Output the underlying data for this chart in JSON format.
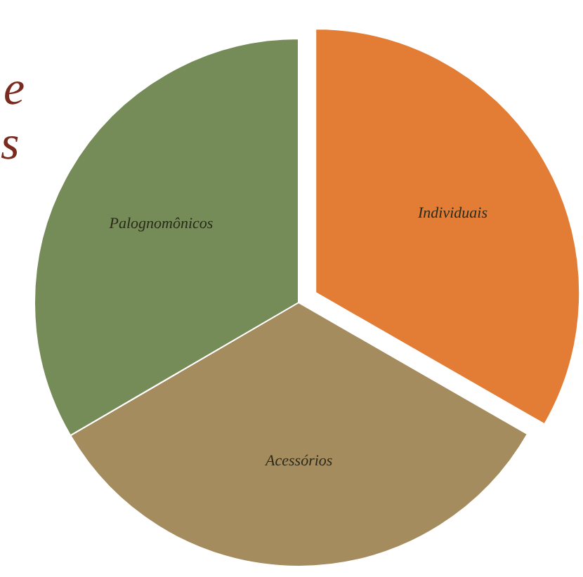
{
  "chart_data": {
    "type": "pie",
    "categories": [
      "Individuais",
      "Acessórios",
      "Palognomônicos"
    ],
    "values": [
      33.3,
      33.3,
      33.4
    ],
    "colors": [
      "#e37d35",
      "#a58c5e",
      "#758c58"
    ],
    "annotations": [
      "e",
      "s"
    ]
  }
}
